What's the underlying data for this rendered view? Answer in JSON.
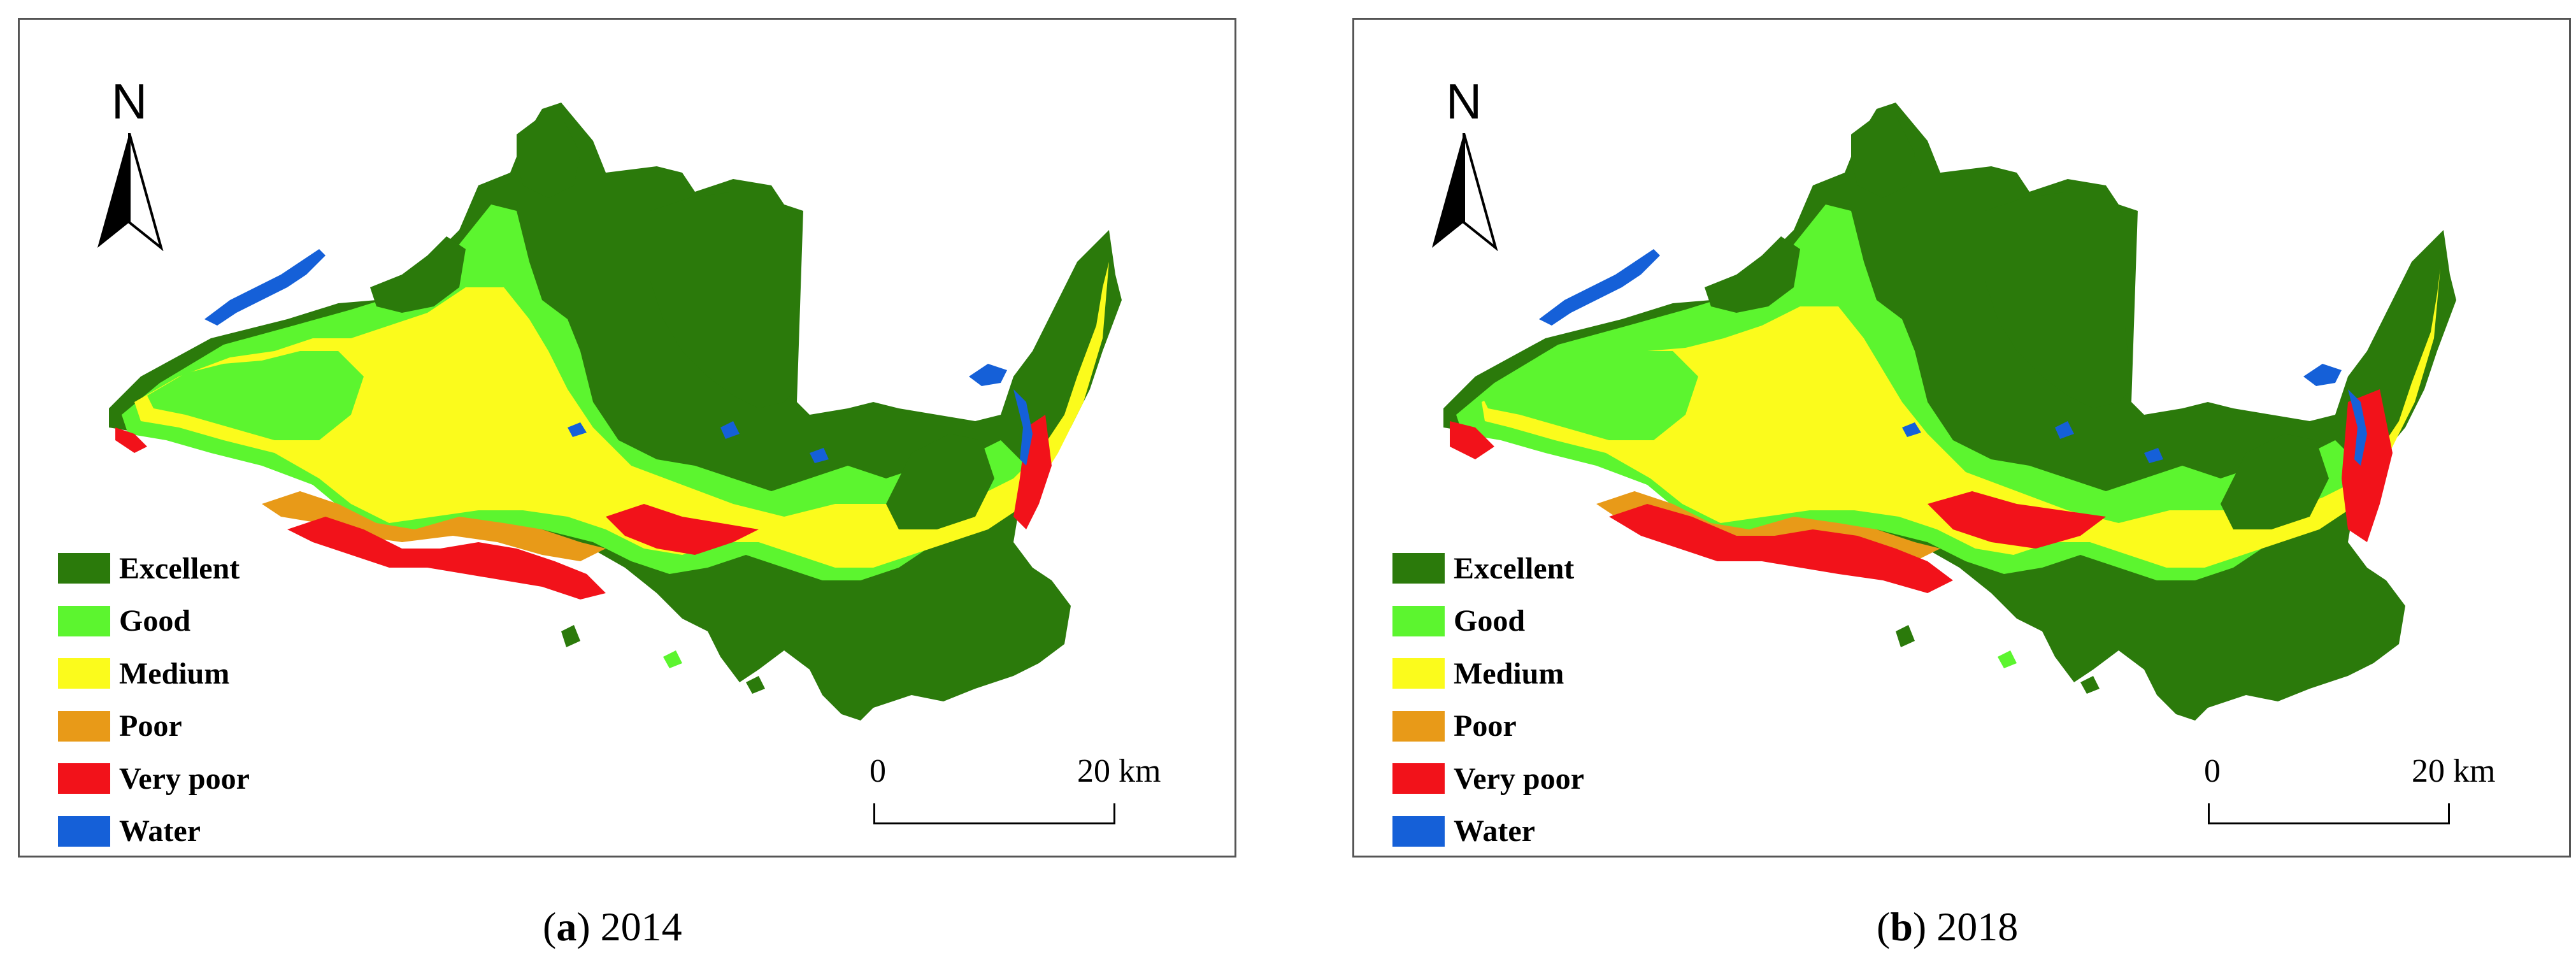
{
  "legend": [
    {
      "label": "Excellent",
      "color": "#2b7a0b"
    },
    {
      "label": "Good",
      "color": "#5cf52f"
    },
    {
      "label": "Medium",
      "color": "#fbfb1c"
    },
    {
      "label": "Poor",
      "color": "#e89a18"
    },
    {
      "label": "Very poor",
      "color": "#f2121a"
    },
    {
      "label": "Water",
      "color": "#1560d8"
    }
  ],
  "north_arrow": {
    "letter": "N"
  },
  "scale_bar": {
    "start": "0",
    "end": "20 km"
  },
  "panels": [
    {
      "letter": "a",
      "year": "2014"
    },
    {
      "letter": "b",
      "year": "2018"
    }
  ]
}
